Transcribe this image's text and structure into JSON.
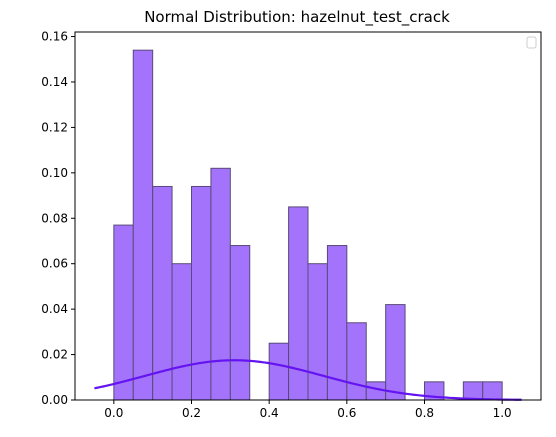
{
  "chart_data": {
    "type": "histogram",
    "title": "Normal Distribution: hazelnut_test_crack",
    "xlabel": "",
    "ylabel": "",
    "xlim": [
      -0.1,
      1.1
    ],
    "ylim": [
      0,
      0.162
    ],
    "grid": false,
    "legend": {
      "placement": "top-right",
      "entries": []
    },
    "x_ticks": [
      "0.0",
      "0.2",
      "0.4",
      "0.6",
      "0.8",
      "1.0"
    ],
    "x_tick_values": [
      0.0,
      0.2,
      0.4,
      0.6,
      0.8,
      1.0
    ],
    "y_ticks": [
      "0.00",
      "0.02",
      "0.04",
      "0.06",
      "0.08",
      "0.10",
      "0.12",
      "0.14",
      "0.16"
    ],
    "y_tick_values": [
      0.0,
      0.02,
      0.04,
      0.06,
      0.08,
      0.1,
      0.12,
      0.14,
      0.16
    ],
    "bins": [
      {
        "x0": 0.0,
        "x1": 0.05,
        "y": 0.077
      },
      {
        "x0": 0.05,
        "x1": 0.1,
        "y": 0.154
      },
      {
        "x0": 0.1,
        "x1": 0.15,
        "y": 0.094
      },
      {
        "x0": 0.15,
        "x1": 0.2,
        "y": 0.06
      },
      {
        "x0": 0.2,
        "x1": 0.25,
        "y": 0.094
      },
      {
        "x0": 0.25,
        "x1": 0.3,
        "y": 0.102
      },
      {
        "x0": 0.3,
        "x1": 0.35,
        "y": 0.068
      },
      {
        "x0": 0.35,
        "x1": 0.4,
        "y": 0.0
      },
      {
        "x0": 0.4,
        "x1": 0.45,
        "y": 0.025
      },
      {
        "x0": 0.45,
        "x1": 0.5,
        "y": 0.085
      },
      {
        "x0": 0.5,
        "x1": 0.55,
        "y": 0.06
      },
      {
        "x0": 0.55,
        "x1": 0.6,
        "y": 0.068
      },
      {
        "x0": 0.6,
        "x1": 0.65,
        "y": 0.034
      },
      {
        "x0": 0.65,
        "x1": 0.7,
        "y": 0.008
      },
      {
        "x0": 0.7,
        "x1": 0.75,
        "y": 0.042
      },
      {
        "x0": 0.75,
        "x1": 0.8,
        "y": 0.0
      },
      {
        "x0": 0.8,
        "x1": 0.85,
        "y": 0.008
      },
      {
        "x0": 0.85,
        "x1": 0.9,
        "y": 0.0
      },
      {
        "x0": 0.9,
        "x1": 0.95,
        "y": 0.008
      },
      {
        "x0": 0.95,
        "x1": 1.0,
        "y": 0.008
      }
    ],
    "curve": {
      "x_range": [
        -0.05,
        1.05
      ],
      "mean": 0.31,
      "std": 0.23,
      "peak": 0.0175
    },
    "colors": {
      "bar_fill": "#a374fb",
      "bar_edge": "#5a4a7a",
      "curve": "#6414f0",
      "axes": "#000000"
    }
  }
}
